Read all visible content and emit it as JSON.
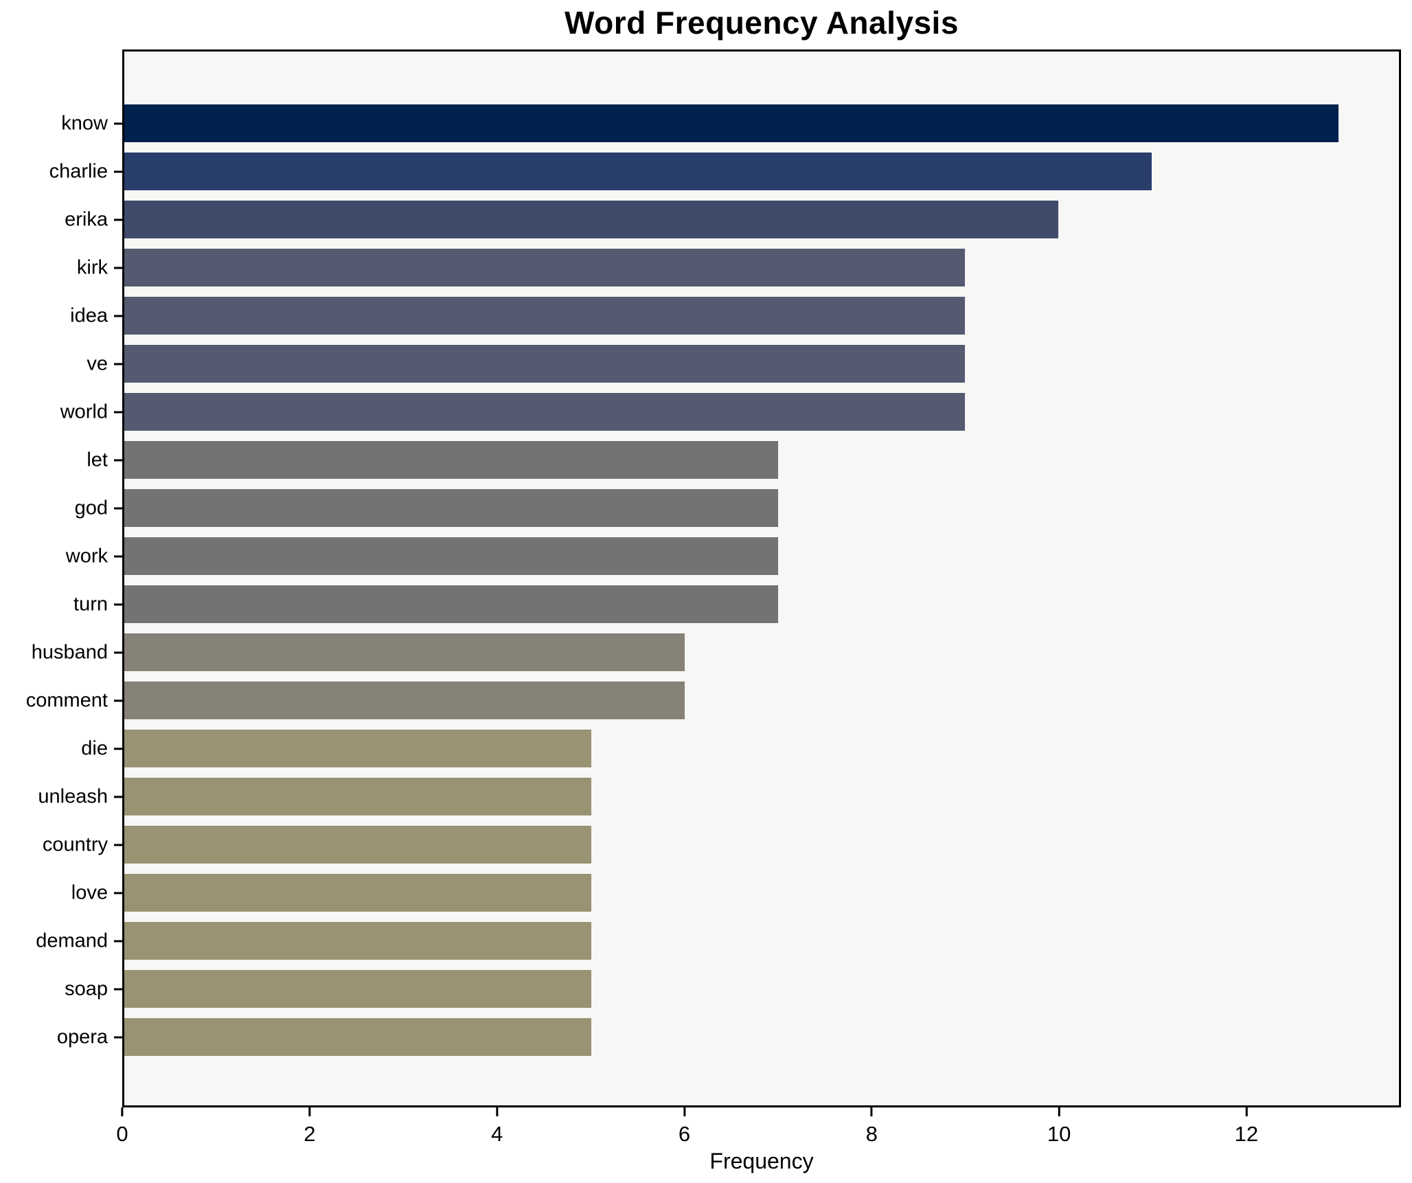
{
  "chart_data": {
    "type": "bar",
    "orientation": "horizontal",
    "title": "Word Frequency Analysis",
    "xlabel": "Frequency",
    "ylabel": "",
    "categories": [
      "know",
      "charlie",
      "erika",
      "kirk",
      "idea",
      "ve",
      "world",
      "let",
      "god",
      "work",
      "turn",
      "husband",
      "comment",
      "die",
      "unleash",
      "country",
      "love",
      "demand",
      "soap",
      "opera"
    ],
    "values": [
      13,
      11,
      10,
      9,
      9,
      9,
      9,
      7,
      7,
      7,
      7,
      6,
      6,
      5,
      5,
      5,
      5,
      5,
      5,
      5
    ],
    "bar_colors": [
      "#00224d",
      "#2a3e6c",
      "#404b6b",
      "#555a70",
      "#555a70",
      "#555a70",
      "#555a70",
      "#737373",
      "#737373",
      "#737373",
      "#737373",
      "#868277",
      "#868277",
      "#999273",
      "#999273",
      "#999273",
      "#999273",
      "#999273",
      "#999273",
      "#999273"
    ],
    "xticks": [
      0,
      2,
      4,
      6,
      8,
      10,
      12
    ],
    "xlim": [
      0,
      13.65
    ],
    "grid": false,
    "legend_position": "none",
    "plot_background": "#f7f7f5",
    "figure_background": "#ffffff",
    "spine_color": "#000000",
    "text_color": "#000000"
  }
}
